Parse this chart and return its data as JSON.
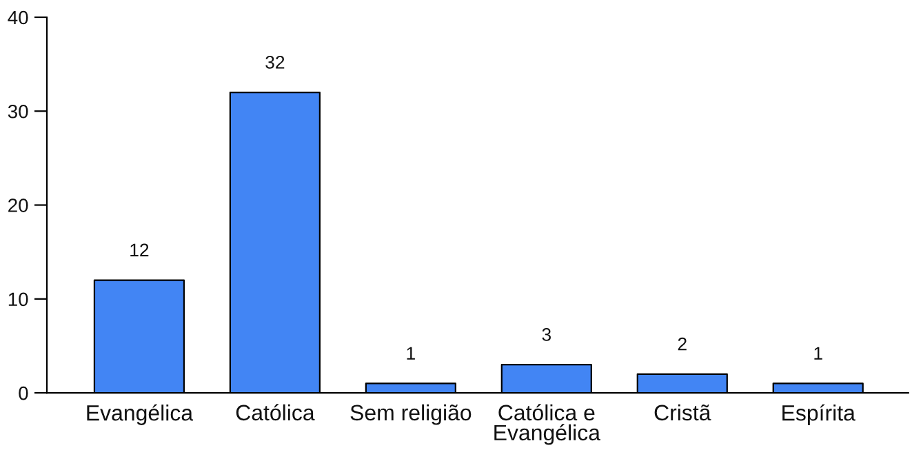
{
  "chart_data": {
    "type": "bar",
    "categories": [
      "Evangélica",
      "Católica",
      "Sem religião",
      "Católica e Evangélica",
      "Cristã",
      "Espírita"
    ],
    "values": [
      12,
      32,
      1,
      3,
      2,
      1
    ],
    "color": "#4285f4",
    "ylim": [
      0,
      40
    ],
    "yticks": [
      0,
      10,
      20,
      30,
      40
    ],
    "data_labels": true
  }
}
